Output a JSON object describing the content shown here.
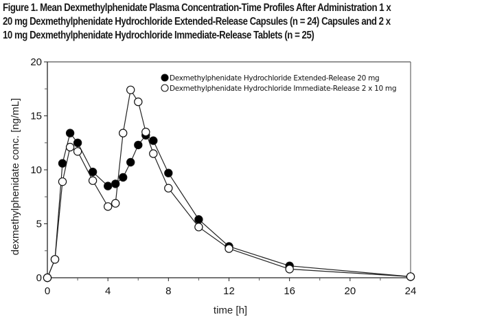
{
  "figure": {
    "title_lines": [
      "Figure 1. Mean Dexmethylphenidate Plasma Concentration-Time Profiles After Administration 1 x",
      "20 mg Dexmethylphenidate Hydrochloride Extended-Release Capsules (n = 24) Capsules and 2 x",
      "10 mg Dexmethylphenidate Hydrochloride Immediate-Release Tablets (n = 25)"
    ]
  },
  "chart_data": {
    "type": "line",
    "title": "Figure 1. Mean Dexmethylphenidate Plasma Concentration-Time Profiles After Administration 1 x 20 mg Dexmethylphenidate Hydrochloride Extended-Release Capsules (n = 24) Capsules and 2 x 10 mg Dexmethylphenidate Hydrochloride Immediate-Release Tablets (n = 25)",
    "xlabel": "time [h]",
    "ylabel": "dexmethylphenidate conc. [ng/mL]",
    "xlim": [
      0,
      24
    ],
    "ylim": [
      0,
      20
    ],
    "xticks": [
      0,
      4,
      8,
      12,
      16,
      20,
      24
    ],
    "xminor_ticks": [
      2,
      6,
      10,
      14,
      18,
      22
    ],
    "yticks": [
      0,
      5,
      10,
      15,
      20
    ],
    "yminor_ticks": [
      2.5,
      7.5,
      12.5,
      17.5
    ],
    "grid": false,
    "legend_position": "top-right",
    "series": [
      {
        "name": "Dexmethylphenidate Hydrochloride Extended-Release 20 mg",
        "marker": "filled-circle",
        "color": "#000000",
        "x": [
          0,
          0.5,
          1,
          1.5,
          2,
          3,
          4,
          4.5,
          5,
          5.5,
          6,
          6.5,
          7,
          8,
          10,
          12,
          16,
          24
        ],
        "y": [
          0,
          1.7,
          10.6,
          13.4,
          12.5,
          9.8,
          8.5,
          8.7,
          9.3,
          10.7,
          12.3,
          13.2,
          12.7,
          9.7,
          5.4,
          2.9,
          1.1,
          0.1
        ]
      },
      {
        "name": "Dexmethylphenidate Hydrochloride Immediate-Release 2 x 10 mg",
        "marker": "open-circle",
        "color": "#000000",
        "x": [
          0,
          0.5,
          1,
          1.5,
          2,
          3,
          4,
          4.5,
          5,
          5.5,
          6,
          6.5,
          7,
          8,
          10,
          12,
          16,
          24
        ],
        "y": [
          0,
          1.7,
          8.9,
          12.1,
          11.7,
          9.0,
          6.6,
          6.9,
          13.4,
          17.4,
          16.3,
          13.5,
          11.5,
          8.3,
          4.7,
          2.7,
          0.8,
          0.1
        ]
      }
    ]
  }
}
